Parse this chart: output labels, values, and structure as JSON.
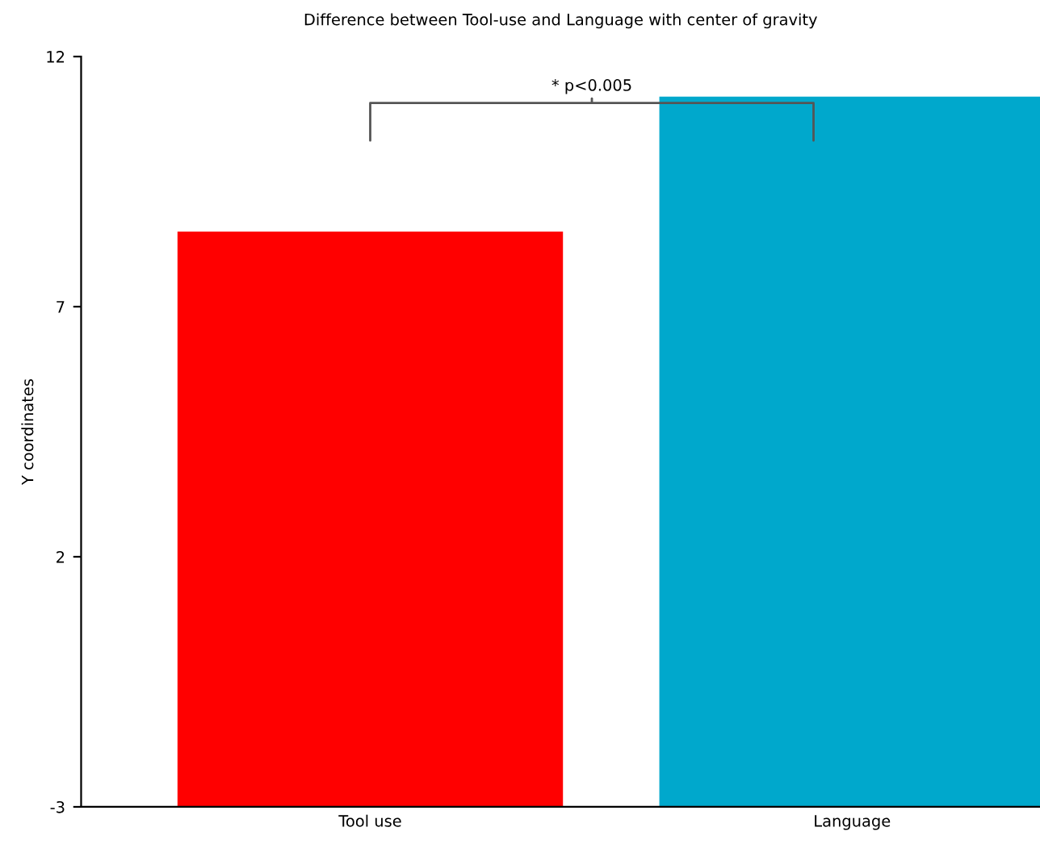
{
  "chart_data": {
    "type": "bar",
    "title": "Difference between Tool-use and Language with center of gravity",
    "ylabel": "Y coordinates",
    "categories": [
      "Tool use",
      "Language"
    ],
    "values": [
      11.5,
      14.2
    ],
    "base": [
      -3,
      -3
    ],
    "colors": [
      "#ff0000",
      "#00a8cc"
    ],
    "ylim": [
      -3,
      12
    ],
    "yticks": [
      -3,
      2,
      7,
      12
    ],
    "grid": false,
    "legend": false,
    "annotations": [
      "* p<0.005"
    ]
  }
}
